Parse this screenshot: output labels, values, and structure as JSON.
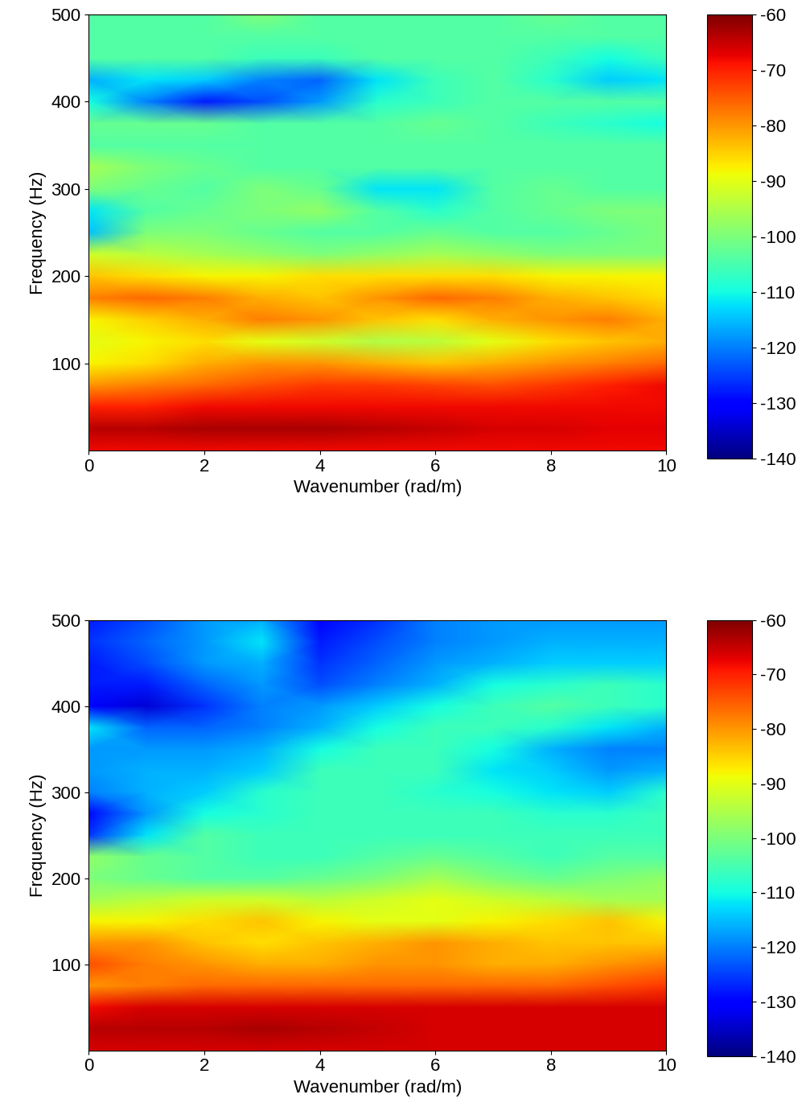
{
  "chart_data": [
    {
      "type": "heatmap",
      "x_label": "Wavenumber (rad/m)",
      "y_label": "Frequency (Hz)",
      "x": [
        0,
        1,
        2,
        3,
        4,
        5,
        6,
        7,
        8,
        9,
        10
      ],
      "y": [
        0,
        25,
        50,
        75,
        100,
        125,
        150,
        175,
        200,
        225,
        250,
        275,
        300,
        325,
        350,
        375,
        400,
        425,
        450,
        475,
        500
      ],
      "cells": [
        [
          -68,
          -68,
          -68,
          -68,
          -68,
          -68,
          -68,
          -68,
          -68,
          -68,
          -68
        ],
        [
          -64,
          -64,
          -63,
          -63,
          -63,
          -64,
          -65,
          -66,
          -66,
          -67,
          -67
        ],
        [
          -70,
          -70,
          -68,
          -68,
          -68,
          -68,
          -68,
          -68,
          -68,
          -68,
          -68
        ],
        [
          -80,
          -78,
          -76,
          -74,
          -72,
          -72,
          -73,
          -74,
          -72,
          -70,
          -68
        ],
        [
          -88,
          -86,
          -82,
          -80,
          -80,
          -82,
          -84,
          -82,
          -80,
          -78,
          -76
        ],
        [
          -90,
          -88,
          -86,
          -90,
          -92,
          -95,
          -94,
          -90,
          -86,
          -84,
          -82
        ],
        [
          -88,
          -85,
          -82,
          -78,
          -80,
          -84,
          -86,
          -82,
          -80,
          -78,
          -82
        ],
        [
          -78,
          -76,
          -78,
          -82,
          -84,
          -80,
          -76,
          -78,
          -82,
          -84,
          -86
        ],
        [
          -84,
          -86,
          -88,
          -88,
          -86,
          -86,
          -86,
          -86,
          -88,
          -88,
          -88
        ],
        [
          -92,
          -94,
          -96,
          -98,
          -100,
          -98,
          -96,
          -98,
          -100,
          -100,
          -100
        ],
        [
          -115,
          -100,
          -100,
          -102,
          -104,
          -104,
          -102,
          -104,
          -104,
          -102,
          -100
        ],
        [
          -112,
          -104,
          -102,
          -100,
          -98,
          -104,
          -108,
          -104,
          -102,
          -100,
          -100
        ],
        [
          -100,
          -102,
          -104,
          -100,
          -102,
          -112,
          -112,
          -104,
          -102,
          -104,
          -104
        ],
        [
          -96,
          -100,
          -102,
          -104,
          -104,
          -104,
          -104,
          -104,
          -104,
          -104,
          -104
        ],
        [
          -104,
          -104,
          -104,
          -104,
          -104,
          -104,
          -104,
          -104,
          -104,
          -104,
          -104
        ],
        [
          -102,
          -102,
          -102,
          -104,
          -104,
          -104,
          -102,
          -104,
          -106,
          -108,
          -110
        ],
        [
          -110,
          -120,
          -128,
          -124,
          -118,
          -108,
          -106,
          -104,
          -104,
          -104,
          -104
        ],
        [
          -116,
          -112,
          -114,
          -120,
          -122,
          -112,
          -106,
          -104,
          -108,
          -114,
          -112
        ],
        [
          -104,
          -104,
          -104,
          -106,
          -106,
          -104,
          -104,
          -104,
          -106,
          -110,
          -106
        ],
        [
          -104,
          -104,
          -104,
          -104,
          -104,
          -104,
          -104,
          -104,
          -104,
          -104,
          -104
        ],
        [
          -104,
          -104,
          -104,
          -100,
          -104,
          -104,
          -104,
          -104,
          -102,
          -104,
          -104
        ]
      ],
      "xlim": [
        0,
        10
      ],
      "xticks": [
        0,
        2,
        4,
        6,
        8,
        10
      ],
      "ylim": [
        0,
        500
      ],
      "yticks": [
        100,
        200,
        300,
        400,
        500
      ],
      "colorbar_range": [
        -140,
        -60
      ],
      "colorbar_ticks": [
        -60,
        -70,
        -80,
        -90,
        -100,
        -110,
        -120,
        -130,
        -140
      ]
    },
    {
      "type": "heatmap",
      "x_label": "Wavenumber (rad/m)",
      "y_label": "Frequency (Hz)",
      "x": [
        0,
        1,
        2,
        3,
        4,
        5,
        6,
        7,
        8,
        9,
        10
      ],
      "y": [
        0,
        25,
        50,
        75,
        100,
        125,
        150,
        175,
        200,
        225,
        250,
        275,
        300,
        325,
        350,
        375,
        400,
        425,
        450,
        475,
        500
      ],
      "cells": [
        [
          -66,
          -66,
          -66,
          -66,
          -66,
          -66,
          -66,
          -66,
          -66,
          -66,
          -66
        ],
        [
          -64,
          -64,
          -64,
          -63,
          -64,
          -65,
          -66,
          -66,
          -66,
          -66,
          -66
        ],
        [
          -68,
          -66,
          -66,
          -66,
          -66,
          -66,
          -66,
          -66,
          -66,
          -66,
          -66
        ],
        [
          -80,
          -78,
          -76,
          -76,
          -76,
          -76,
          -76,
          -76,
          -76,
          -74,
          -72
        ],
        [
          -74,
          -78,
          -80,
          -82,
          -82,
          -80,
          -80,
          -82,
          -82,
          -80,
          -78
        ],
        [
          -80,
          -80,
          -84,
          -86,
          -84,
          -82,
          -80,
          -82,
          -84,
          -84,
          -84
        ],
        [
          -88,
          -88,
          -86,
          -84,
          -88,
          -90,
          -90,
          -88,
          -86,
          -84,
          -88
        ],
        [
          -96,
          -94,
          -92,
          -92,
          -94,
          -92,
          -90,
          -92,
          -94,
          -96,
          -96
        ],
        [
          -100,
          -102,
          -104,
          -104,
          -102,
          -100,
          -96,
          -100,
          -102,
          -100,
          -98
        ],
        [
          -98,
          -102,
          -104,
          -106,
          -106,
          -104,
          -102,
          -104,
          -106,
          -104,
          -104
        ],
        [
          -126,
          -112,
          -104,
          -106,
          -106,
          -106,
          -106,
          -106,
          -106,
          -106,
          -106
        ],
        [
          -130,
          -118,
          -110,
          -108,
          -106,
          -106,
          -106,
          -106,
          -108,
          -108,
          -106
        ],
        [
          -120,
          -116,
          -114,
          -108,
          -106,
          -106,
          -108,
          -110,
          -112,
          -114,
          -108
        ],
        [
          -118,
          -116,
          -116,
          -114,
          -106,
          -106,
          -106,
          -112,
          -114,
          -118,
          -116
        ],
        [
          -118,
          -118,
          -118,
          -116,
          -110,
          -106,
          -106,
          -110,
          -116,
          -120,
          -120
        ],
        [
          -112,
          -122,
          -122,
          -120,
          -116,
          -110,
          -106,
          -106,
          -108,
          -112,
          -116
        ],
        [
          -130,
          -134,
          -126,
          -120,
          -118,
          -114,
          -110,
          -106,
          -104,
          -106,
          -108
        ],
        [
          -128,
          -128,
          -122,
          -118,
          -124,
          -120,
          -116,
          -110,
          -108,
          -106,
          -108
        ],
        [
          -128,
          -124,
          -118,
          -116,
          -126,
          -122,
          -118,
          -116,
          -114,
          -114,
          -114
        ],
        [
          -126,
          -122,
          -118,
          -112,
          -128,
          -124,
          -120,
          -118,
          -116,
          -116,
          -116
        ],
        [
          -128,
          -124,
          -118,
          -116,
          -130,
          -126,
          -120,
          -118,
          -118,
          -118,
          -118
        ]
      ],
      "xlim": [
        0,
        10
      ],
      "xticks": [
        0,
        2,
        4,
        6,
        8,
        10
      ],
      "ylim": [
        0,
        500
      ],
      "yticks": [
        100,
        200,
        300,
        400,
        500
      ],
      "colorbar_range": [
        -140,
        -60
      ],
      "colorbar_ticks": [
        -60,
        -70,
        -80,
        -90,
        -100,
        -110,
        -120,
        -130,
        -140
      ]
    }
  ]
}
